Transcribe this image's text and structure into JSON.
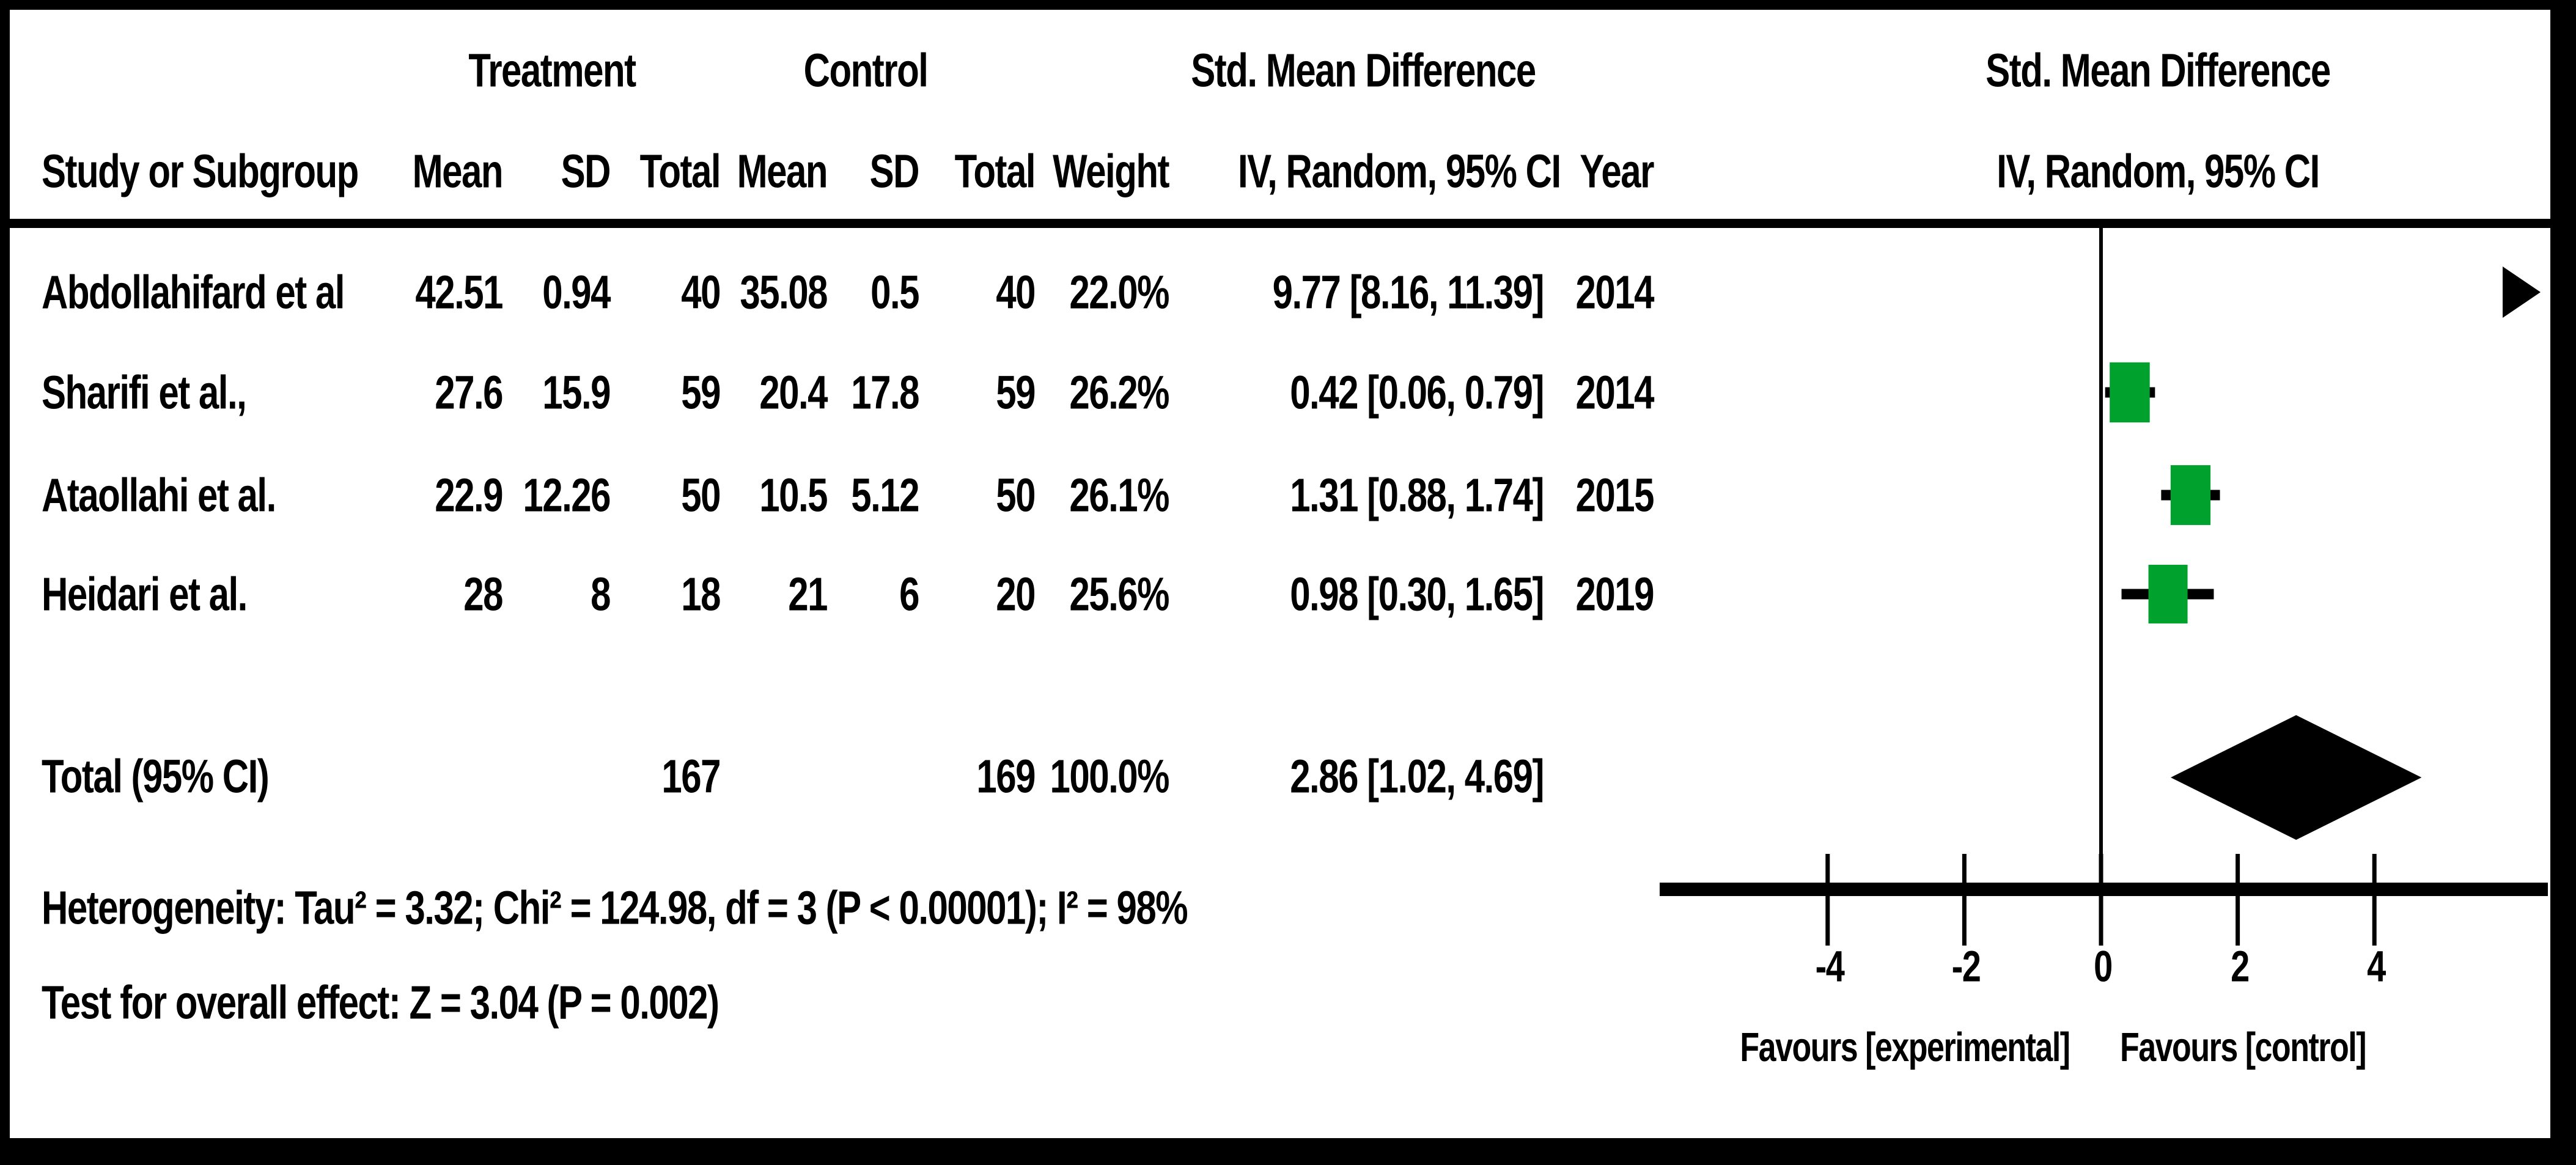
{
  "table": {
    "group_headers": {
      "treatment": "Treatment",
      "control": "Control",
      "smd": "Std. Mean Difference"
    },
    "col_headers": {
      "study": "Study or Subgroup",
      "mean": "Mean",
      "sd": "SD",
      "total": "Total",
      "weight": "Weight",
      "iv": "IV, Random, 95% CI",
      "year": "Year"
    },
    "rows": [
      {
        "study": "Abdollahifard et al",
        "mean_t": "42.51",
        "sd_t": "0.94",
        "total_t": "40",
        "mean_c": "35.08",
        "sd_c": "0.5",
        "total_c": "40",
        "weight": "22.0%",
        "ci": "9.77 [8.16, 11.39]",
        "year": "2014"
      },
      {
        "study": "Sharifi et al.,",
        "mean_t": "27.6",
        "sd_t": "15.9",
        "total_t": "59",
        "mean_c": "20.4",
        "sd_c": "17.8",
        "total_c": "59",
        "weight": "26.2%",
        "ci": "0.42 [0.06, 0.79]",
        "year": "2014"
      },
      {
        "study": "Ataollahi et al.",
        "mean_t": "22.9",
        "sd_t": "12.26",
        "total_t": "50",
        "mean_c": "10.5",
        "sd_c": "5.12",
        "total_c": "50",
        "weight": "26.1%",
        "ci": "1.31 [0.88, 1.74]",
        "year": "2015"
      },
      {
        "study": "Heidari et al.",
        "mean_t": "28",
        "sd_t": "8",
        "total_t": "18",
        "mean_c": "21",
        "sd_c": "6",
        "total_c": "20",
        "weight": "25.6%",
        "ci": "0.98 [0.30, 1.65]",
        "year": "2019"
      }
    ],
    "total_row": {
      "label": "Total (95% CI)",
      "total_t": "167",
      "total_c": "169",
      "weight": "100.0%",
      "ci": "2.86 [1.02, 4.69]"
    },
    "heterogeneity": "Heterogeneity: Tau² = 3.32; Chi² = 124.98, df = 3 (P < 0.00001); I² = 98%",
    "overall_effect": "Test for overall effect: Z = 3.04 (P = 0.002)"
  },
  "plot": {
    "header1": "Std. Mean Difference",
    "header2": "IV, Random, 95% CI",
    "tick_labels": [
      "-4",
      "-2",
      "0",
      "2",
      "4"
    ],
    "favours_left": "Favours [experimental]",
    "favours_right": "Favours [control]"
  },
  "chart_data": {
    "type": "scatter",
    "subtype": "forest-plot-random-effects-meta-analysis",
    "effect_measure": "Std. Mean Difference (IV, Random, 95% CI)",
    "studies": [
      {
        "name": "Abdollahifard et al",
        "year": 2014,
        "smd": 9.77,
        "ci": [
          8.16,
          11.39
        ],
        "weight_pct": 22.0,
        "offscale_right": true
      },
      {
        "name": "Sharifi et al.,",
        "year": 2014,
        "smd": 0.42,
        "ci": [
          0.06,
          0.79
        ],
        "weight_pct": 26.2,
        "offscale_right": false
      },
      {
        "name": "Ataollahi et al.",
        "year": 2015,
        "smd": 1.31,
        "ci": [
          0.88,
          1.74
        ],
        "weight_pct": 26.1,
        "offscale_right": false
      },
      {
        "name": "Heidari et al.",
        "year": 2019,
        "smd": 0.98,
        "ci": [
          0.3,
          1.65
        ],
        "weight_pct": 25.6,
        "offscale_right": false
      }
    ],
    "totals": {
      "treatment_n": 167,
      "control_n": 169
    },
    "overall": {
      "smd": 2.86,
      "ci": [
        1.02,
        4.69
      ],
      "weight_pct": 100.0
    },
    "heterogeneity": {
      "tau2": 3.32,
      "chi2": 124.98,
      "df": 3,
      "p": "< 0.00001",
      "i2_pct": 98
    },
    "overall_effect_test": {
      "z": 3.04,
      "p": 0.002
    },
    "xticks": [
      -4,
      -2,
      0,
      2,
      4
    ],
    "xlim": [
      -6.5,
      6.5
    ],
    "grid": false,
    "axis_labels": {
      "left": "Favours [experimental]",
      "right": "Favours [control]"
    },
    "marker_color": "#00a12c",
    "diamond_color": "#000000"
  }
}
